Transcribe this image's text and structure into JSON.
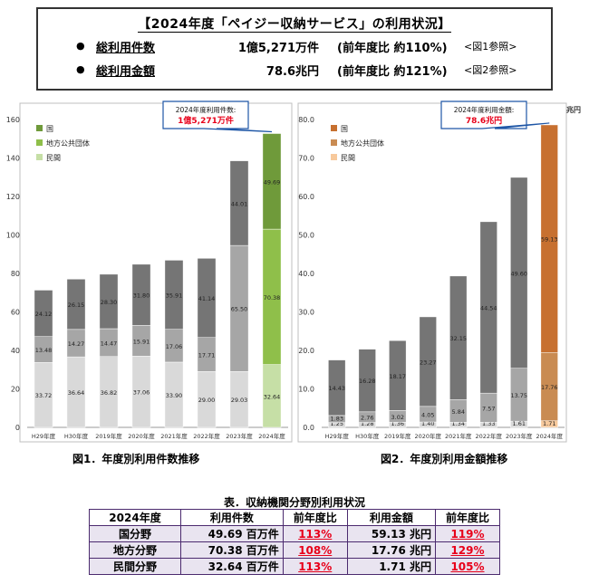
{
  "summary": {
    "heading": "【2024年度「ペイジー収納サービス」の利用状況】",
    "rows": [
      {
        "label": "総利用件数",
        "value": "1億5,271万件",
        "yoy": "(前年度比 約110%)",
        "ref": "<図1参照>"
      },
      {
        "label": "総利用金額",
        "value": "78.6兆円",
        "yoy": "(前年度比 約121%)",
        "ref": "<図2参照>"
      }
    ]
  },
  "colors": {
    "gov": "#757575",
    "local": "#a6a6a6",
    "private": "#d9d9d9",
    "gov_hl1": "#6f9a3a",
    "local_hl1": "#8fbf4a",
    "private_hl1": "#c6dfa6",
    "gov_hl2": "#c77030",
    "local_hl2": "#c98b52",
    "private_hl2": "#f7c99c",
    "callout_border": "#1e56a6",
    "callout_text": "#e8001a",
    "table_border": "#4b2a6e",
    "pct_red": "#e8001a"
  },
  "chart_data": [
    {
      "type": "bar",
      "stacked": true,
      "caption": "図1．年度別利用件数推移",
      "categories": [
        "H29年度",
        "H30年度",
        "2019年度",
        "2020年度",
        "2021年度",
        "2022年度",
        "2023年度",
        "2024年度"
      ],
      "series": [
        {
          "name": "民間",
          "values": [
            33.72,
            36.64,
            36.82,
            37.06,
            33.9,
            29.0,
            29.03,
            32.64
          ]
        },
        {
          "name": "地方公共団体",
          "values": [
            13.48,
            14.27,
            14.47,
            15.91,
            17.06,
            17.71,
            65.5,
            70.38
          ]
        },
        {
          "name": "国",
          "values": [
            24.12,
            26.15,
            28.3,
            31.8,
            35.91,
            41.14,
            44.01,
            49.69
          ]
        }
      ],
      "ylim": [
        0,
        160
      ],
      "yticks": [
        0,
        20,
        40,
        60,
        80,
        100,
        120,
        140,
        160
      ],
      "ylabel": "",
      "legend": "top-left",
      "grid": false,
      "highlight_index": 7,
      "callout": {
        "line1": "2024年度利用件数:",
        "line2": "1億5,271万件"
      }
    },
    {
      "type": "bar",
      "stacked": true,
      "caption": "図2．年度別利用金額推移",
      "categories": [
        "H29年度",
        "H30年度",
        "2019年度",
        "2020年度",
        "2021年度",
        "2022年度",
        "2023年度",
        "2024年度"
      ],
      "series": [
        {
          "name": "民間",
          "values": [
            1.25,
            1.28,
            1.36,
            1.4,
            1.34,
            1.33,
            1.61,
            1.71
          ]
        },
        {
          "name": "地方公共団体",
          "values": [
            1.83,
            2.76,
            3.02,
            4.05,
            5.84,
            7.57,
            13.75,
            17.76
          ]
        },
        {
          "name": "国",
          "values": [
            14.43,
            16.28,
            18.17,
            23.27,
            32.15,
            44.54,
            49.6,
            59.13
          ]
        }
      ],
      "ylim": [
        0,
        80
      ],
      "yticks": [
        "0.0",
        "10.0",
        "20.0",
        "30.0",
        "40.0",
        "50.0",
        "60.0",
        "70.0",
        "80.0"
      ],
      "ylabel": "兆円",
      "legend": "top-left",
      "grid": false,
      "highlight_index": 7,
      "callout": {
        "line1": "2024年度利用金額:",
        "line2": "78.6兆円"
      }
    }
  ],
  "table": {
    "title": "表．収納機関分野別利用状況",
    "headers": [
      "2024年度",
      "利用件数",
      "前年度比",
      "利用金額",
      "前年度比"
    ],
    "rows": [
      {
        "cat": "国分野",
        "count": "49.69 百万件",
        "count_yoy": "113%",
        "amount": "59.13 兆円",
        "amount_yoy": "119%"
      },
      {
        "cat": "地方分野",
        "count": "70.38 百万件",
        "count_yoy": "108%",
        "amount": "17.76 兆円",
        "amount_yoy": "129%"
      },
      {
        "cat": "民間分野",
        "count": "32.64 百万件",
        "count_yoy": "113%",
        "amount": "1.71 兆円",
        "amount_yoy": "105%"
      }
    ]
  }
}
